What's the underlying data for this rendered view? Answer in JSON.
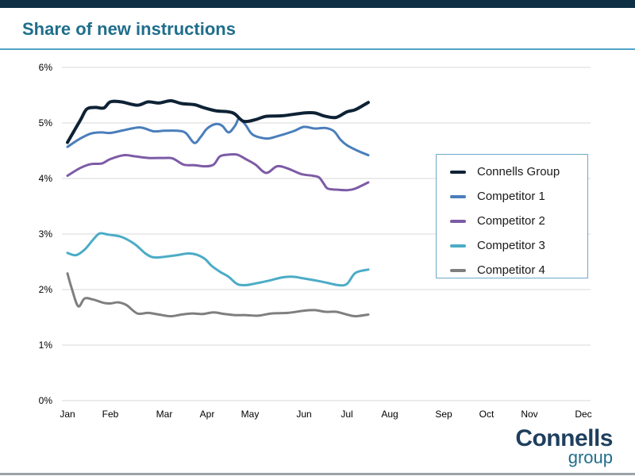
{
  "title": "Share of new instructions",
  "colors": {
    "top_bar": "#0e2f44",
    "title": "#1f6e8c",
    "title_rule": "#4fa3c7",
    "grid": "#d9d9d9",
    "axis_text": "#000000"
  },
  "logo": {
    "word1": "Connells",
    "word2": "group"
  },
  "chart_data": {
    "type": "line",
    "x_categories": [
      "Jan",
      "Feb",
      "Mar",
      "Apr",
      "May",
      "Jun",
      "Jul",
      "Aug",
      "Sep",
      "Oct",
      "Nov",
      "Dec"
    ],
    "ylim": [
      0,
      6
    ],
    "y_ticks": [
      0,
      1,
      2,
      3,
      4,
      5,
      6
    ],
    "y_tick_labels": [
      "0%",
      "1%",
      "2%",
      "3%",
      "4%",
      "5%",
      "6%"
    ],
    "x_range_months": [
      0,
      12
    ],
    "grid": true,
    "legend_position": "right",
    "series": [
      {
        "name": "Connells Group",
        "color": "#0e2235",
        "points": [
          [
            0,
            4.65
          ],
          [
            0.3,
            5.05
          ],
          [
            0.45,
            5.25
          ],
          [
            0.65,
            5.28
          ],
          [
            0.85,
            5.27
          ],
          [
            1.0,
            5.38
          ],
          [
            1.2,
            5.38
          ],
          [
            1.5,
            5.32
          ],
          [
            1.7,
            5.38
          ],
          [
            1.9,
            5.36
          ],
          [
            2.15,
            5.4
          ],
          [
            2.4,
            5.35
          ],
          [
            2.7,
            5.33
          ],
          [
            2.9,
            5.28
          ],
          [
            3.2,
            5.22
          ],
          [
            3.5,
            5.2
          ],
          [
            3.65,
            5.16
          ],
          [
            3.85,
            5.03
          ],
          [
            4.1,
            5.06
          ],
          [
            4.3,
            5.12
          ],
          [
            4.6,
            5.13
          ],
          [
            5.0,
            5.18
          ],
          [
            5.25,
            5.18
          ],
          [
            5.5,
            5.12
          ],
          [
            5.75,
            5.1
          ],
          [
            6.0,
            5.2
          ],
          [
            6.2,
            5.24
          ],
          [
            6.5,
            5.37
          ]
        ]
      },
      {
        "name": "Competitor 1",
        "color": "#4a7ebb",
        "points": [
          [
            0,
            4.57
          ],
          [
            0.3,
            4.72
          ],
          [
            0.55,
            4.81
          ],
          [
            0.8,
            4.83
          ],
          [
            1.0,
            4.82
          ],
          [
            1.25,
            4.87
          ],
          [
            1.55,
            4.92
          ],
          [
            1.8,
            4.85
          ],
          [
            2.0,
            4.86
          ],
          [
            2.3,
            4.86
          ],
          [
            2.5,
            4.82
          ],
          [
            2.7,
            4.64
          ],
          [
            2.85,
            4.75
          ],
          [
            3.0,
            4.9
          ],
          [
            3.2,
            4.98
          ],
          [
            3.35,
            4.95
          ],
          [
            3.5,
            4.83
          ],
          [
            3.65,
            4.95
          ],
          [
            3.75,
            5.08
          ],
          [
            3.9,
            4.96
          ],
          [
            4.05,
            4.79
          ],
          [
            4.3,
            4.72
          ],
          [
            4.5,
            4.76
          ],
          [
            4.8,
            4.85
          ],
          [
            5.0,
            4.93
          ],
          [
            5.25,
            4.9
          ],
          [
            5.5,
            4.91
          ],
          [
            5.7,
            4.85
          ],
          [
            5.85,
            4.7
          ],
          [
            6.0,
            4.6
          ],
          [
            6.25,
            4.5
          ],
          [
            6.5,
            4.42
          ]
        ]
      },
      {
        "name": "Competitor 2",
        "color": "#7d5ba6",
        "points": [
          [
            0,
            4.05
          ],
          [
            0.3,
            4.19
          ],
          [
            0.55,
            4.26
          ],
          [
            0.8,
            4.27
          ],
          [
            1.0,
            4.35
          ],
          [
            1.25,
            4.42
          ],
          [
            1.45,
            4.4
          ],
          [
            1.7,
            4.37
          ],
          [
            2.0,
            4.37
          ],
          [
            2.2,
            4.36
          ],
          [
            2.45,
            4.25
          ],
          [
            2.7,
            4.24
          ],
          [
            2.95,
            4.22
          ],
          [
            3.15,
            4.25
          ],
          [
            3.3,
            4.4
          ],
          [
            3.5,
            4.43
          ],
          [
            3.7,
            4.43
          ],
          [
            3.9,
            4.35
          ],
          [
            4.1,
            4.25
          ],
          [
            4.3,
            4.1
          ],
          [
            4.5,
            4.22
          ],
          [
            4.7,
            4.18
          ],
          [
            4.95,
            4.08
          ],
          [
            5.2,
            4.05
          ],
          [
            5.35,
            4.02
          ],
          [
            5.45,
            3.92
          ],
          [
            5.55,
            3.82
          ],
          [
            5.75,
            3.8
          ],
          [
            6.0,
            3.79
          ],
          [
            6.2,
            3.82
          ],
          [
            6.5,
            3.93
          ]
        ]
      },
      {
        "name": "Competitor 3",
        "color": "#4bacc6",
        "points": [
          [
            0,
            2.66
          ],
          [
            0.2,
            2.62
          ],
          [
            0.4,
            2.72
          ],
          [
            0.6,
            2.9
          ],
          [
            0.75,
            3.01
          ],
          [
            0.95,
            2.99
          ],
          [
            1.2,
            2.95
          ],
          [
            1.45,
            2.82
          ],
          [
            1.65,
            2.65
          ],
          [
            1.8,
            2.58
          ],
          [
            2.0,
            2.59
          ],
          [
            2.3,
            2.62
          ],
          [
            2.55,
            2.65
          ],
          [
            2.75,
            2.63
          ],
          [
            2.95,
            2.55
          ],
          [
            3.1,
            2.43
          ],
          [
            3.3,
            2.32
          ],
          [
            3.5,
            2.23
          ],
          [
            3.7,
            2.1
          ],
          [
            3.9,
            2.08
          ],
          [
            4.1,
            2.11
          ],
          [
            4.35,
            2.16
          ],
          [
            4.6,
            2.22
          ],
          [
            4.8,
            2.23
          ],
          [
            5.0,
            2.2
          ],
          [
            5.3,
            2.16
          ],
          [
            5.55,
            2.12
          ],
          [
            5.8,
            2.08
          ],
          [
            6.0,
            2.1
          ],
          [
            6.2,
            2.3
          ],
          [
            6.5,
            2.36
          ]
        ]
      },
      {
        "name": "Competitor 4",
        "color": "#7f7f7f",
        "points": [
          [
            0,
            2.29
          ],
          [
            0.1,
            2.02
          ],
          [
            0.25,
            1.7
          ],
          [
            0.4,
            1.84
          ],
          [
            0.6,
            1.82
          ],
          [
            0.85,
            1.76
          ],
          [
            1.0,
            1.75
          ],
          [
            1.15,
            1.77
          ],
          [
            1.3,
            1.72
          ],
          [
            1.5,
            1.57
          ],
          [
            1.7,
            1.58
          ],
          [
            1.9,
            1.55
          ],
          [
            2.15,
            1.52
          ],
          [
            2.4,
            1.55
          ],
          [
            2.65,
            1.57
          ],
          [
            2.9,
            1.56
          ],
          [
            3.15,
            1.59
          ],
          [
            3.4,
            1.56
          ],
          [
            3.65,
            1.54
          ],
          [
            3.9,
            1.54
          ],
          [
            4.15,
            1.53
          ],
          [
            4.4,
            1.57
          ],
          [
            4.7,
            1.58
          ],
          [
            5.0,
            1.62
          ],
          [
            5.25,
            1.63
          ],
          [
            5.5,
            1.6
          ],
          [
            5.75,
            1.6
          ],
          [
            6.0,
            1.55
          ],
          [
            6.2,
            1.52
          ],
          [
            6.5,
            1.55
          ]
        ]
      }
    ]
  }
}
